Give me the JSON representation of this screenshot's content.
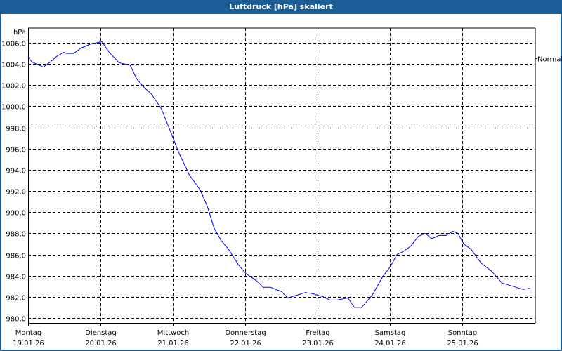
{
  "window": {
    "title": "Luftdruck [hPa] skaliert"
  },
  "chart_data": {
    "type": "line",
    "title": "Luftdruck [hPa] skaliert",
    "ylabel": "hPa",
    "xlabel": "",
    "ylim": [
      980,
      1006
    ],
    "yticks": [
      980,
      982,
      984,
      986,
      988,
      990,
      992,
      994,
      996,
      998,
      1000,
      1002,
      1004,
      1006
    ],
    "ytick_labels": [
      "980,0",
      "982,0",
      "984,0",
      "986,0",
      "988,0",
      "990,0",
      "992,0",
      "994,0",
      "996,0",
      "998,0",
      "1000,0",
      "1002,0",
      "1004,0",
      "1006,0"
    ],
    "xlim_days": [
      0,
      7
    ],
    "xticks": [
      {
        "day": "Montag",
        "date": "19.01.26"
      },
      {
        "day": "Dienstag",
        "date": "20.01.26"
      },
      {
        "day": "Mittwoch",
        "date": "21.01.26"
      },
      {
        "day": "Donnerstag",
        "date": "22.01.26"
      },
      {
        "day": "Freitag",
        "date": "23.01.26"
      },
      {
        "day": "Samstag",
        "date": "24.01.26"
      },
      {
        "day": "Sonntag",
        "date": "25.01.26"
      }
    ],
    "grid": true,
    "reference": {
      "label": "Normal",
      "value": 1004.5
    },
    "series": [
      {
        "name": "Luftdruck",
        "color": "#0000ff",
        "x": [
          0,
          0.05,
          0.15,
          0.21,
          0.31,
          0.39,
          0.49,
          0.53,
          0.63,
          0.73,
          0.87,
          1.02,
          1.12,
          1.26,
          1.41,
          1.5,
          1.6,
          1.7,
          1.84,
          1.94,
          2.09,
          2.23,
          2.38,
          2.48,
          2.57,
          2.67,
          2.77,
          2.91,
          3.01,
          3.16,
          3.25,
          3.35,
          3.5,
          3.59,
          3.69,
          3.83,
          3.93,
          4.08,
          4.17,
          4.27,
          4.42,
          4.51,
          4.61,
          4.76,
          4.9,
          5.0,
          5.1,
          5.19,
          5.29,
          5.39,
          5.49,
          5.58,
          5.68,
          5.78,
          5.87,
          5.94,
          6.02,
          6.12,
          6.26,
          6.41,
          6.55,
          6.7,
          6.84,
          6.94
        ],
        "y": [
          1004.7,
          1004.2,
          1003.9,
          1003.7,
          1004.2,
          1004.7,
          1005.1,
          1005.0,
          1005.0,
          1005.5,
          1005.9,
          1006.1,
          1005.1,
          1004.1,
          1003.9,
          1002.6,
          1001.8,
          1001.2,
          999.8,
          998.1,
          995.5,
          993.5,
          992.1,
          990.5,
          988.5,
          987.3,
          986.5,
          985.0,
          984.2,
          983.5,
          982.9,
          982.9,
          982.5,
          981.9,
          982.1,
          982.4,
          982.3,
          982.0,
          981.7,
          981.7,
          981.9,
          981.0,
          981.0,
          982.2,
          983.9,
          984.8,
          986.0,
          986.3,
          986.8,
          987.7,
          988.0,
          987.5,
          987.8,
          987.8,
          988.2,
          988.0,
          987.0,
          986.5,
          985.2,
          984.4,
          983.3,
          983.0,
          982.7,
          982.8
        ]
      }
    ]
  }
}
